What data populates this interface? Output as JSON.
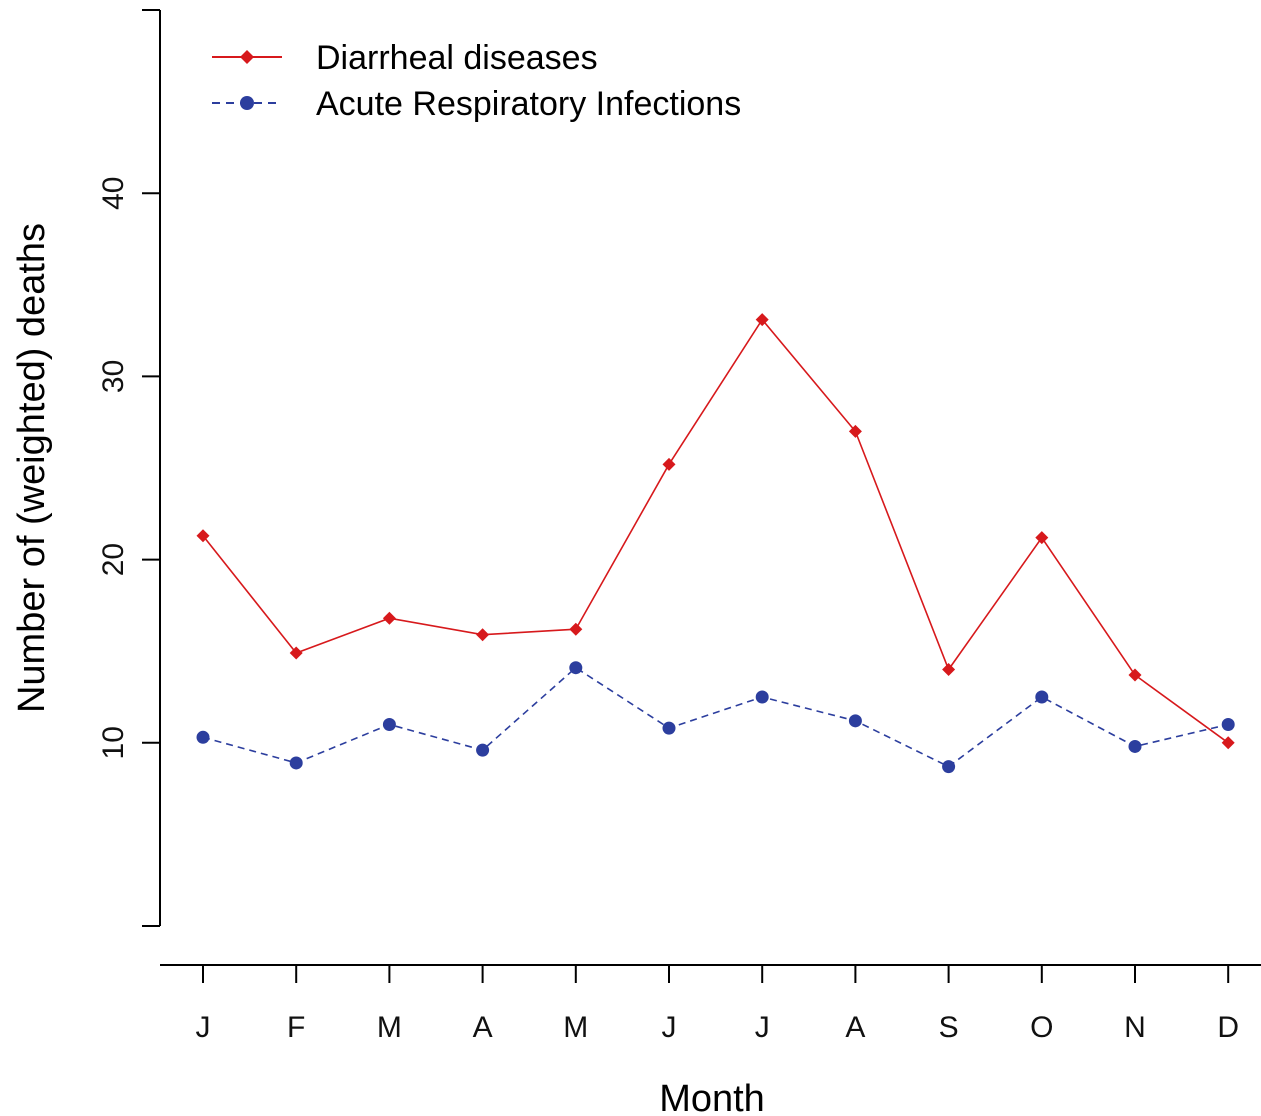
{
  "chart_data": {
    "type": "line",
    "title": "",
    "xlabel": "Month",
    "ylabel": "Number of (weighted) deaths",
    "categories": [
      "J",
      "F",
      "M",
      "A",
      "M",
      "J",
      "J",
      "A",
      "S",
      "O",
      "N",
      "D"
    ],
    "ylim": [
      0,
      50
    ],
    "yticks": [
      10,
      20,
      30,
      40
    ],
    "grid": false,
    "legend_position": "top-left",
    "series": [
      {
        "name": "Diarrheal diseases",
        "values": [
          21.3,
          14.9,
          16.8,
          15.9,
          16.2,
          25.2,
          33.1,
          27.0,
          14.0,
          21.2,
          13.7,
          10.0
        ],
        "color": "#d7191c",
        "line_style": "solid",
        "marker": "diamond"
      },
      {
        "name": "Acute Respiratory Infections",
        "values": [
          10.3,
          8.9,
          11.0,
          9.6,
          14.1,
          10.8,
          12.5,
          11.2,
          8.7,
          12.5,
          9.8,
          11.0
        ],
        "color": "#2c3e9e",
        "line_style": "dashed",
        "marker": "circle"
      }
    ]
  }
}
